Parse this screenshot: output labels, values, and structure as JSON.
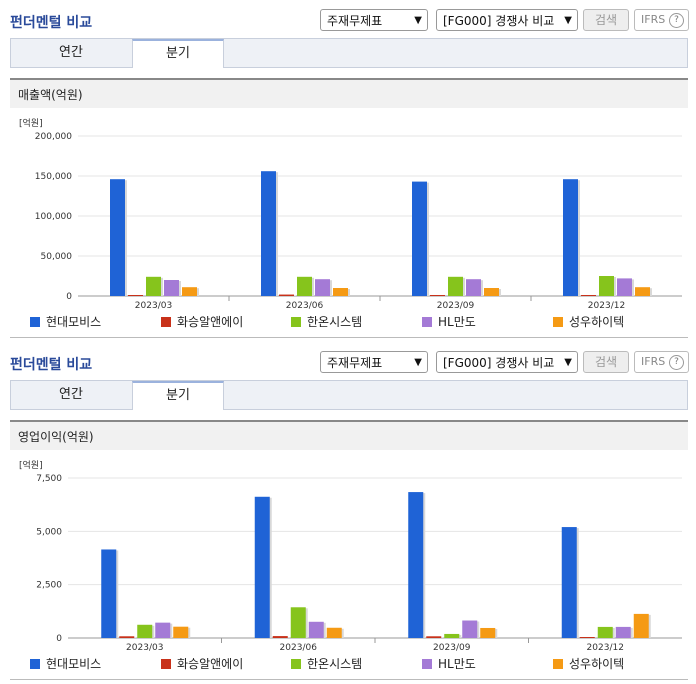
{
  "panels": [
    {
      "title": "펀더멘털 비교",
      "select1": "주재무제표",
      "select2": "[FG000] 경쟁사 비교",
      "search_label": "검색",
      "ifrs_label": "IFRS",
      "ifrs_help": "?",
      "tabs": [
        {
          "label": "연간"
        },
        {
          "label": "분기"
        }
      ],
      "section_title": "매출액(억원)"
    },
    {
      "title": "펀더멘털 비교",
      "select1": "주재무제표",
      "select2": "[FG000] 경쟁사 비교",
      "search_label": "검색",
      "ifrs_label": "IFRS",
      "ifrs_help": "?",
      "tabs": [
        {
          "label": "연간"
        },
        {
          "label": "분기"
        }
      ],
      "section_title": "영업이익(억원)"
    }
  ],
  "colors": {
    "현대모비스": "#1f63d6",
    "화승알앤에이": "#c8311a",
    "한온시스템": "#86c41c",
    "HL만도": "#a47ad6",
    "성우하이텍": "#f59a14"
  },
  "chart_data": [
    {
      "type": "bar",
      "unit_label": "[억원]",
      "categories": [
        "2023/03",
        "2023/06",
        "2023/09",
        "2023/12"
      ],
      "ylim": [
        0,
        200000
      ],
      "yticks": [
        "0",
        "50,000",
        "100,000",
        "150,000",
        "200,000"
      ],
      "ytick_values": [
        0,
        50000,
        100000,
        150000,
        200000
      ],
      "grid": true,
      "legend_position": "bottom",
      "series": [
        {
          "name": "현대모비스",
          "values": [
            146000,
            156000,
            143000,
            146000
          ]
        },
        {
          "name": "화승알앤에이",
          "values": [
            300,
            1800,
            400,
            300
          ]
        },
        {
          "name": "한온시스템",
          "values": [
            24000,
            24000,
            24000,
            25000
          ]
        },
        {
          "name": "HL만도",
          "values": [
            20000,
            21000,
            21000,
            22000
          ]
        },
        {
          "name": "성우하이텍",
          "values": [
            11000,
            10000,
            10000,
            11000
          ]
        }
      ]
    },
    {
      "type": "bar",
      "unit_label": "[억원]",
      "categories": [
        "2023/03",
        "2023/06",
        "2023/09",
        "2023/12"
      ],
      "ylim": [
        0,
        7500
      ],
      "yticks": [
        "0",
        "2,500",
        "5,000",
        "7,500"
      ],
      "ytick_values": [
        0,
        2500,
        5000,
        7500
      ],
      "grid": true,
      "legend_position": "bottom",
      "series": [
        {
          "name": "현대모비스",
          "values": [
            4150,
            6620,
            6840,
            5200
          ]
        },
        {
          "name": "화승알앤에이",
          "values": [
            80,
            90,
            80,
            20
          ]
        },
        {
          "name": "한온시스템",
          "values": [
            620,
            1440,
            190,
            520
          ]
        },
        {
          "name": "HL만도",
          "values": [
            720,
            760,
            820,
            520
          ]
        },
        {
          "name": "성우하이텍",
          "values": [
            530,
            480,
            470,
            1130
          ]
        }
      ]
    }
  ]
}
